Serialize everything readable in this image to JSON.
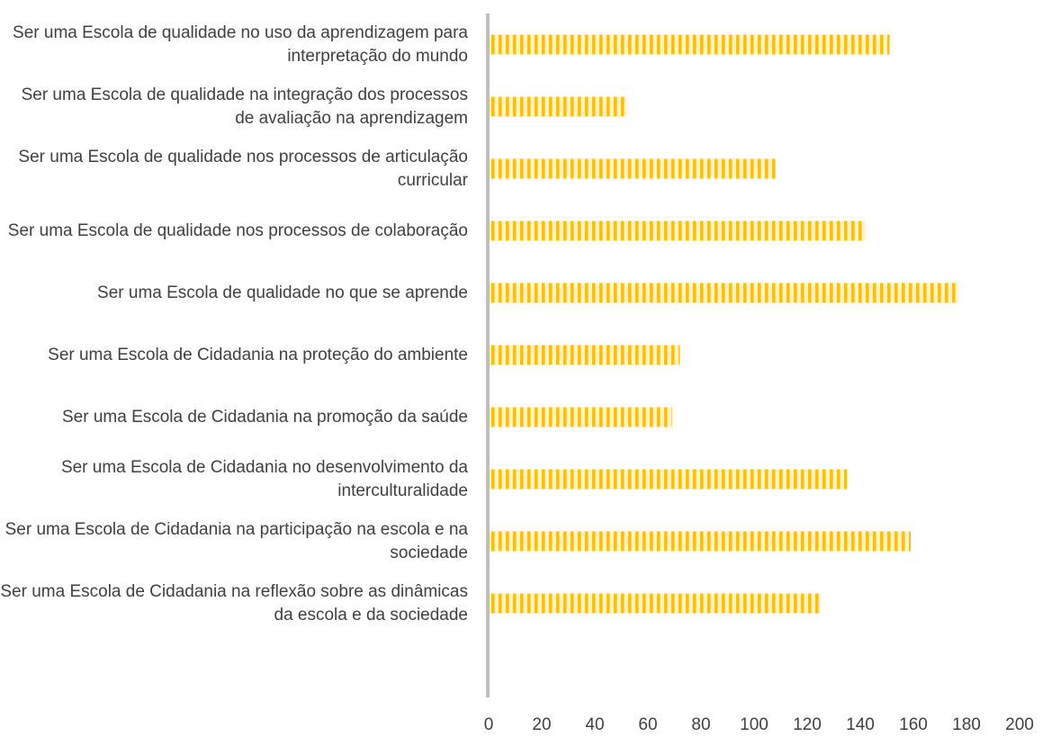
{
  "chart_data": {
    "type": "bar",
    "orientation": "horizontal",
    "categories": [
      "Ser uma Escola de qualidade no uso da aprendizagem para interpretação do mundo",
      "Ser uma Escola de qualidade na integração dos processos de avaliação na aprendizagem",
      "Ser uma Escola de qualidade nos processos de articulação curricular",
      "Ser uma Escola de qualidade nos processos de colaboração",
      "Ser uma Escola de qualidade no que se aprende",
      "Ser uma Escola de Cidadania na proteção do ambiente",
      "Ser uma Escola de Cidadania na promoção da saúde",
      "Ser uma Escola de Cidadania no desenvolvimento da interculturalidade",
      "Ser uma Escola de Cidadania na participação na escola e na sociedade",
      "Ser uma Escola de Cidadania na reflexão sobre as dinâmicas da escola e da sociedade"
    ],
    "values": [
      151,
      52,
      108,
      142,
      177,
      72,
      69,
      135,
      159,
      125
    ],
    "color": "#ffc000",
    "xlim": [
      0,
      200
    ],
    "xticks": [
      0,
      20,
      40,
      60,
      80,
      100,
      120,
      140,
      160,
      180,
      200
    ],
    "grid": false
  }
}
